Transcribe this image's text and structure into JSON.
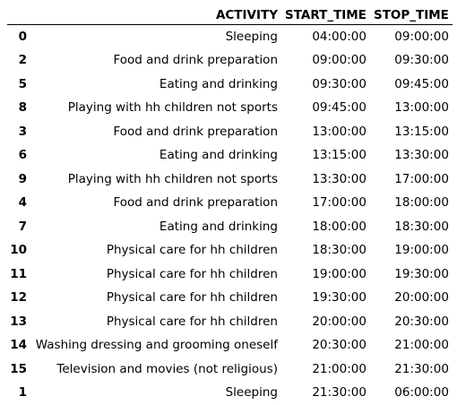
{
  "table": {
    "columns": [
      "",
      "ACTIVITY",
      "START_TIME",
      "STOP_TIME"
    ],
    "rows": [
      {
        "index": "0",
        "activity": "Sleeping",
        "start": "04:00:00",
        "stop": "09:00:00"
      },
      {
        "index": "2",
        "activity": "Food and drink preparation",
        "start": "09:00:00",
        "stop": "09:30:00"
      },
      {
        "index": "5",
        "activity": "Eating and drinking",
        "start": "09:30:00",
        "stop": "09:45:00"
      },
      {
        "index": "8",
        "activity": "Playing with hh children not sports",
        "start": "09:45:00",
        "stop": "13:00:00"
      },
      {
        "index": "3",
        "activity": "Food and drink preparation",
        "start": "13:00:00",
        "stop": "13:15:00"
      },
      {
        "index": "6",
        "activity": "Eating and drinking",
        "start": "13:15:00",
        "stop": "13:30:00"
      },
      {
        "index": "9",
        "activity": "Playing with hh children not sports",
        "start": "13:30:00",
        "stop": "17:00:00"
      },
      {
        "index": "4",
        "activity": "Food and drink preparation",
        "start": "17:00:00",
        "stop": "18:00:00"
      },
      {
        "index": "7",
        "activity": "Eating and drinking",
        "start": "18:00:00",
        "stop": "18:30:00"
      },
      {
        "index": "10",
        "activity": "Physical care for hh children",
        "start": "18:30:00",
        "stop": "19:00:00"
      },
      {
        "index": "11",
        "activity": "Physical care for hh children",
        "start": "19:00:00",
        "stop": "19:30:00"
      },
      {
        "index": "12",
        "activity": "Physical care for hh children",
        "start": "19:30:00",
        "stop": "20:00:00"
      },
      {
        "index": "13",
        "activity": "Physical care for hh children",
        "start": "20:00:00",
        "stop": "20:30:00"
      },
      {
        "index": "14",
        "activity": "Washing dressing and grooming oneself",
        "start": "20:30:00",
        "stop": "21:00:00"
      },
      {
        "index": "15",
        "activity": "Television and movies (not religious)",
        "start": "21:00:00",
        "stop": "21:30:00"
      },
      {
        "index": "1",
        "activity": "Sleeping",
        "start": "21:30:00",
        "stop": "06:00:00"
      }
    ]
  }
}
